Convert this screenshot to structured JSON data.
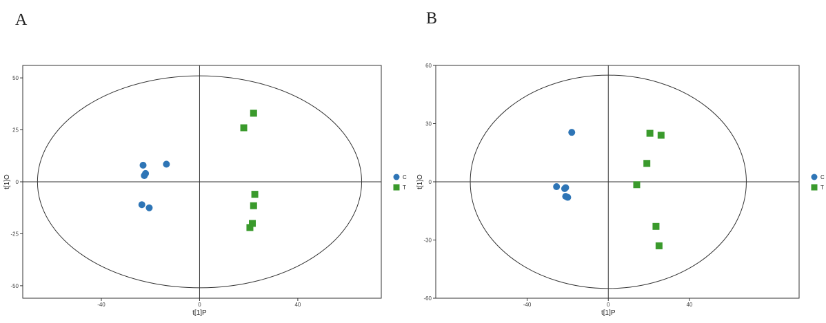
{
  "panels": [
    {
      "letter": "A",
      "chart_data": {
        "type": "scatter",
        "xlabel": "t[1]P",
        "ylabel": "t[1]O",
        "xlim": [
          -72,
          74
        ],
        "ylim": [
          -56,
          56
        ],
        "xticks": [
          -40,
          0,
          40
        ],
        "yticks": [
          -50,
          -25,
          0,
          25,
          50
        ],
        "grid": false,
        "legend_position": "right",
        "ellipse": {
          "rx": 66,
          "ry": 51
        },
        "series": [
          {
            "name": "C",
            "marker": "circle",
            "color": "#2e75b6",
            "points": [
              [
                -23,
                8
              ],
              [
                -22,
                4
              ],
              [
                -22.5,
                3
              ],
              [
                -13.5,
                8.5
              ],
              [
                -23.5,
                -11
              ],
              [
                -20.5,
                -12.5
              ]
            ]
          },
          {
            "name": "T",
            "marker": "square",
            "color": "#3a9a2c",
            "points": [
              [
                22,
                33
              ],
              [
                18,
                26
              ],
              [
                22.5,
                -6
              ],
              [
                22,
                -11.5
              ],
              [
                21.5,
                -20
              ],
              [
                20.5,
                -22
              ]
            ]
          }
        ]
      }
    },
    {
      "letter": "B",
      "chart_data": {
        "type": "scatter",
        "xlabel": "t[1]P",
        "ylabel": "t[1]O",
        "xlim": [
          -85,
          94
        ],
        "ylim": [
          -60,
          60
        ],
        "xticks": [
          -40,
          0,
          40
        ],
        "yticks": [
          -60,
          -30,
          0,
          30,
          60
        ],
        "grid": false,
        "legend_position": "right",
        "ellipse": {
          "rx": 68,
          "ry": 55
        },
        "series": [
          {
            "name": "C",
            "marker": "circle",
            "color": "#2e75b6",
            "points": [
              [
                -18,
                25.5
              ],
              [
                -25.5,
                -2.5
              ],
              [
                -21.5,
                -3.5
              ],
              [
                -21,
                -3
              ],
              [
                -21,
                -7.5
              ],
              [
                -20,
                -8
              ]
            ]
          },
          {
            "name": "T",
            "marker": "square",
            "color": "#3a9a2c",
            "points": [
              [
                20.5,
                25
              ],
              [
                26,
                24
              ],
              [
                19,
                9.5
              ],
              [
                14,
                -1.5
              ],
              [
                23.5,
                -23
              ],
              [
                25,
                -33
              ]
            ]
          }
        ]
      }
    }
  ]
}
